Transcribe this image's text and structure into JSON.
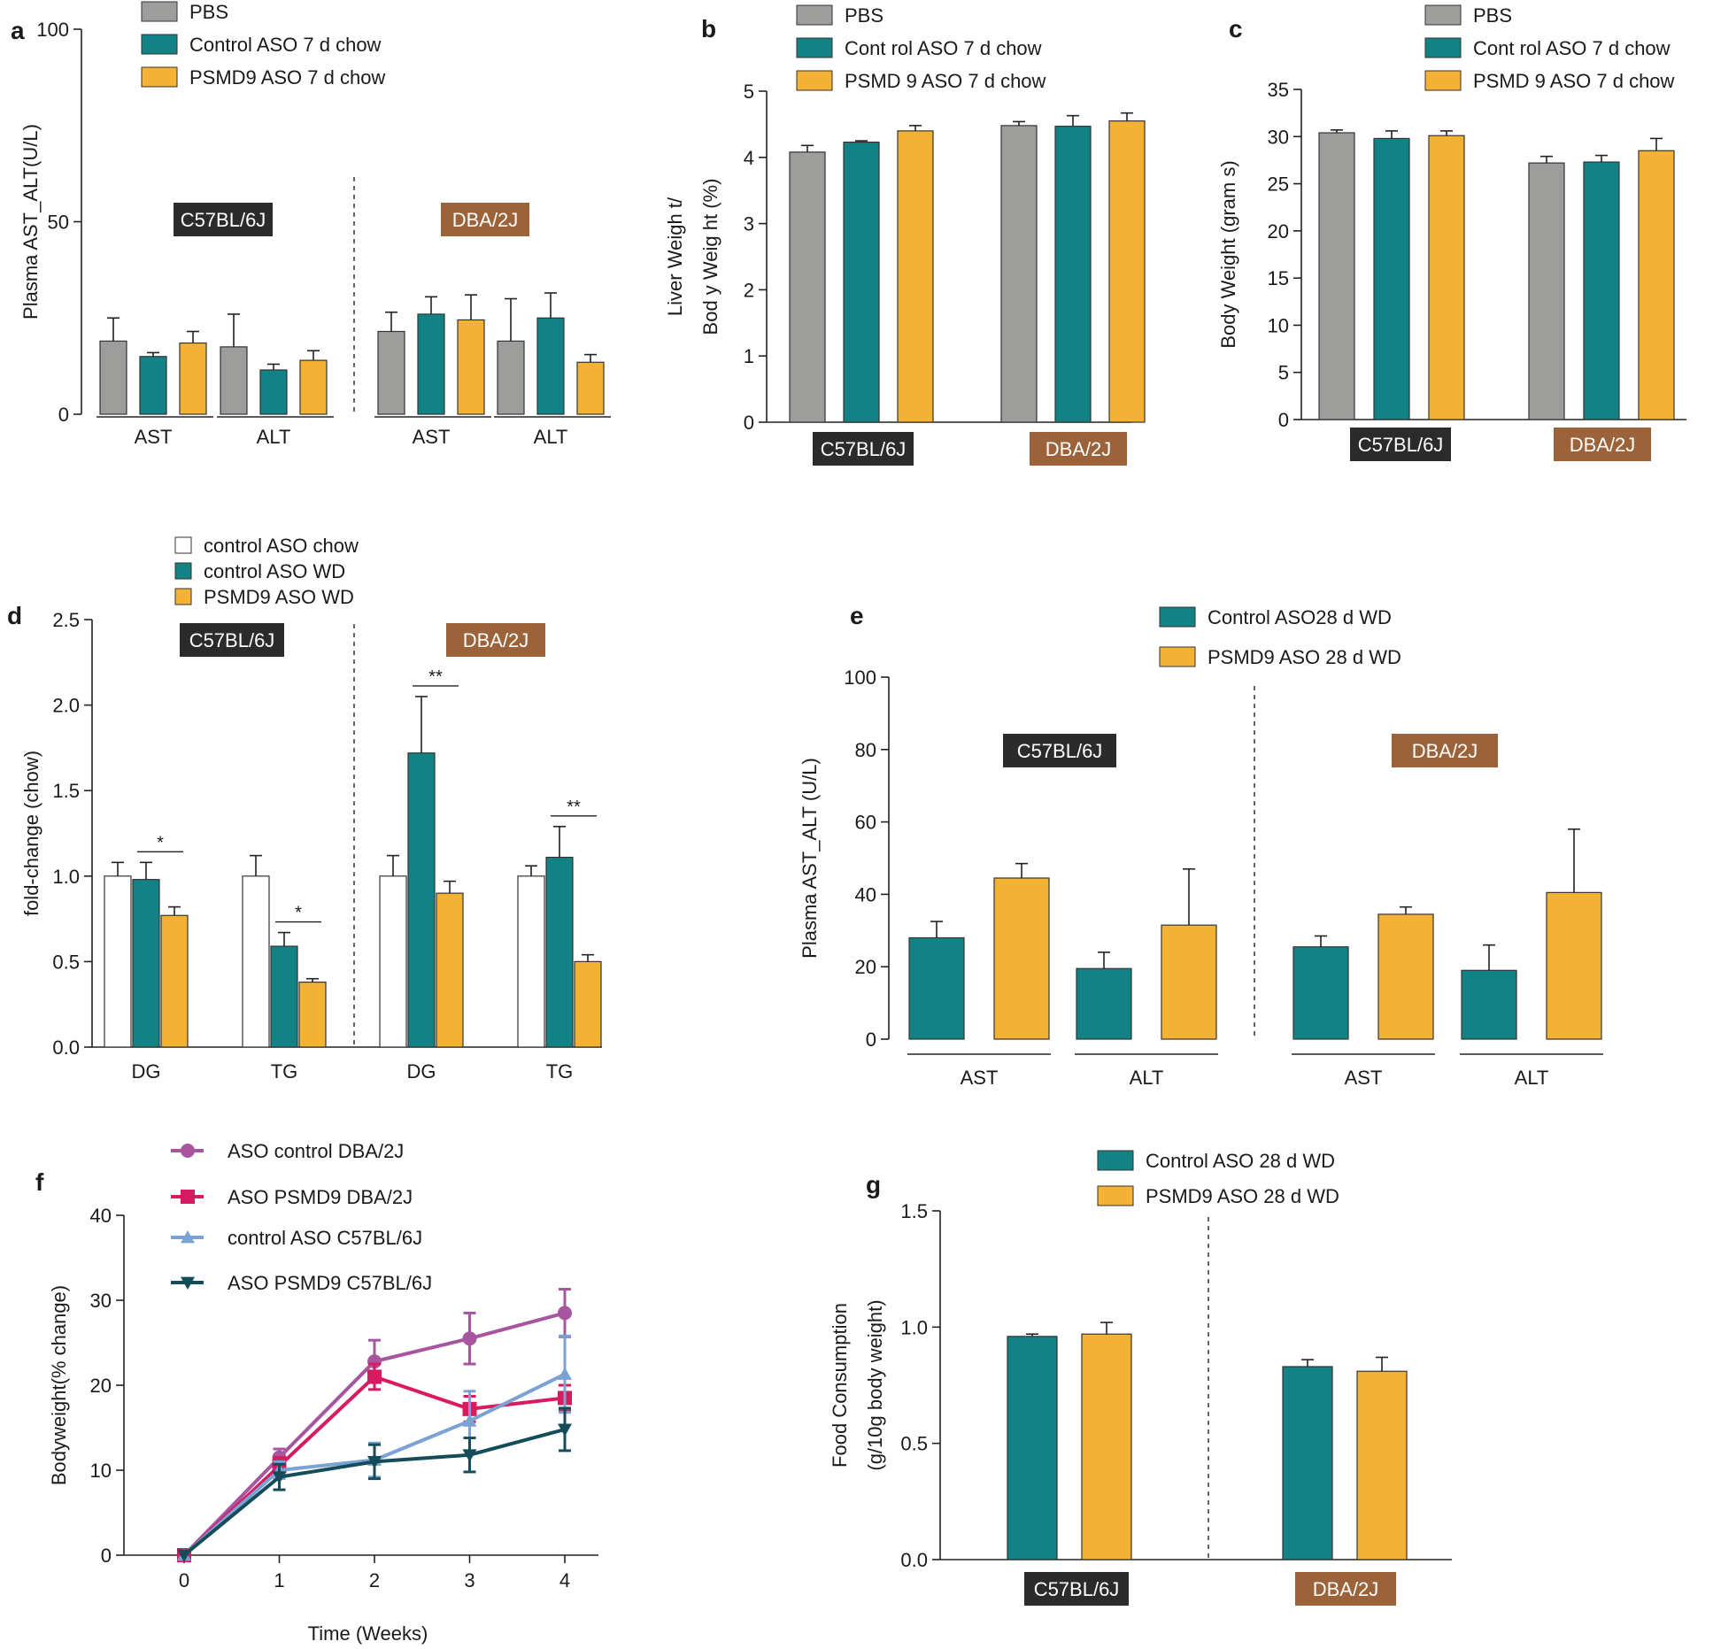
{
  "colors": {
    "pbs": "#9d9d9c",
    "teal": "#138285",
    "orange": "#f3b233",
    "white": "#ffffff",
    "strain_c57": "#2b2b2b",
    "strain_dba": "#9c6239",
    "line_dba_control": "#a8559f",
    "line_dba_psmd9": "#d81b60",
    "line_c57_control": "#7ba2d4",
    "line_c57_psmd9": "#154c5a"
  },
  "chart_data": [
    {
      "panel": "a",
      "type": "bar",
      "ylabel": "Plasma AST_ALT(U/L)",
      "ylim": [
        0,
        100
      ],
      "yticks": [
        0,
        50,
        100
      ],
      "legend": [
        "PBS",
        "Control ASO 7 d chow",
        "PSMD9 ASO 7 d chow"
      ],
      "groups": [
        {
          "label": "AST",
          "strain": "C57BL/6J",
          "values": [
            19,
            15,
            18.5
          ],
          "errors": [
            6,
            1,
            3
          ]
        },
        {
          "label": "ALT",
          "strain": "C57BL/6J",
          "values": [
            17.5,
            11.5,
            14
          ],
          "errors": [
            8.5,
            1.5,
            2.5
          ]
        },
        {
          "label": "AST",
          "strain": "DBA/2J",
          "values": [
            21.5,
            26,
            24.5
          ],
          "errors": [
            5,
            4.5,
            6.5
          ]
        },
        {
          "label": "ALT",
          "strain": "DBA/2J",
          "values": [
            19,
            25,
            13.5
          ],
          "errors": [
            11,
            6.5,
            2
          ]
        }
      ],
      "strains": [
        "C57BL/6J",
        "DBA/2J"
      ]
    },
    {
      "panel": "b",
      "type": "bar",
      "ylabel": "Liver Weigh t/ Bod y Weig ht (%)",
      "ylim": [
        0,
        5
      ],
      "yticks": [
        0,
        1,
        2,
        3,
        4,
        5
      ],
      "legend": [
        "PBS",
        "Cont rol ASO 7 d chow",
        "PSMD 9 ASO 7 d chow"
      ],
      "groups": [
        {
          "label": "C57BL/6J",
          "values": [
            4.08,
            4.23,
            4.4
          ],
          "errors": [
            0.1,
            0.02,
            0.08
          ]
        },
        {
          "label": "DBA/2J",
          "values": [
            4.48,
            4.47,
            4.55
          ],
          "errors": [
            0.06,
            0.16,
            0.12
          ]
        }
      ]
    },
    {
      "panel": "c",
      "type": "bar",
      "ylabel": "Body Weight (gram s)",
      "ylim": [
        0,
        35
      ],
      "yticks": [
        0,
        5,
        10,
        15,
        20,
        25,
        30,
        35
      ],
      "legend": [
        "PBS",
        "Cont rol ASO 7 d chow",
        "PSMD 9 ASO 7 d chow"
      ],
      "groups": [
        {
          "label": "C57BL/6J",
          "values": [
            30.4,
            29.8,
            30.1
          ],
          "errors": [
            0.3,
            0.8,
            0.5
          ]
        },
        {
          "label": "DBA/2J",
          "values": [
            27.2,
            27.3,
            28.5
          ],
          "errors": [
            0.7,
            0.7,
            1.3
          ]
        }
      ]
    },
    {
      "panel": "d",
      "type": "bar",
      "ylabel": "fold-change (chow)",
      "ylim": [
        0,
        2.5
      ],
      "yticks": [
        "0.0",
        "0.5",
        "1.0",
        "1.5",
        "2.0",
        "2.5"
      ],
      "legend": [
        "control ASO chow",
        "control ASO WD",
        "PSMD9 ASO WD"
      ],
      "groups": [
        {
          "label": "DG",
          "strain": "C57BL/6J",
          "values": [
            1.0,
            0.98,
            0.77
          ],
          "errors": [
            0.08,
            0.1,
            0.05
          ],
          "sig": "*"
        },
        {
          "label": "TG",
          "strain": "C57BL/6J",
          "values": [
            1.0,
            0.59,
            0.38
          ],
          "errors": [
            0.12,
            0.08,
            0.02
          ],
          "sig": "*"
        },
        {
          "label": "DG",
          "strain": "DBA/2J",
          "values": [
            1.0,
            1.72,
            0.9
          ],
          "errors": [
            0.12,
            0.33,
            0.07
          ],
          "sig": "**"
        },
        {
          "label": "TG",
          "strain": "DBA/2J",
          "values": [
            1.0,
            1.11,
            0.5
          ],
          "errors": [
            0.06,
            0.18,
            0.04
          ],
          "sig": "**"
        }
      ],
      "strains": [
        "C57BL/6J",
        "DBA/2J"
      ]
    },
    {
      "panel": "e",
      "type": "bar",
      "ylabel": "Plasma AST_ALT (U/L)",
      "ylim": [
        0,
        100
      ],
      "yticks": [
        0,
        20,
        40,
        60,
        80,
        100
      ],
      "legend": [
        "Control ASO28 d WD",
        "PSMD9 ASO 28 d WD"
      ],
      "groups": [
        {
          "label": "AST",
          "strain": "C57BL/6J",
          "values": [
            28,
            44.5
          ],
          "errors": [
            4.5,
            4
          ]
        },
        {
          "label": "ALT",
          "strain": "C57BL/6J",
          "values": [
            19.5,
            31.5
          ],
          "errors": [
            4.5,
            15.5
          ]
        },
        {
          "label": "AST",
          "strain": "DBA/2J",
          "values": [
            25.5,
            34.5
          ],
          "errors": [
            3,
            2
          ]
        },
        {
          "label": "ALT",
          "strain": "DBA/2J",
          "values": [
            19,
            40.5
          ],
          "errors": [
            7,
            17.5
          ]
        }
      ],
      "strains": [
        "C57BL/6J",
        "DBA/2J"
      ]
    },
    {
      "panel": "f",
      "type": "line",
      "xlabel": "Time (Weeks)",
      "ylabel": "Bodyweight(% change)",
      "ylim": [
        0,
        40
      ],
      "yticks": [
        0,
        10,
        20,
        30,
        40
      ],
      "x": [
        0,
        1,
        2,
        3,
        4
      ],
      "series": [
        {
          "name": "ASO control DBA/2J",
          "marker": "circle",
          "values": [
            0,
            11.5,
            22.8,
            25.5,
            28.5
          ],
          "errors": [
            0,
            1,
            2.5,
            3,
            2.8
          ]
        },
        {
          "name": "ASO PSMD9 DBA/2J",
          "marker": "square",
          "values": [
            0,
            10.5,
            21,
            17.2,
            18.5
          ],
          "errors": [
            0,
            1,
            1.5,
            1.5,
            1.5
          ]
        },
        {
          "name": "control ASO C57BL/6J",
          "marker": "triangle-up",
          "values": [
            0,
            10,
            11.2,
            15.8,
            21.3
          ],
          "errors": [
            0,
            1,
            2,
            3.5,
            4.5
          ]
        },
        {
          "name": "ASO PSMD9 C57BL/6J",
          "marker": "triangle-down",
          "values": [
            0,
            9.2,
            11,
            11.8,
            14.8
          ],
          "errors": [
            0,
            1.5,
            2,
            2,
            2.5
          ]
        }
      ]
    },
    {
      "panel": "g",
      "type": "bar",
      "ylabel": "Food Consumption (g/10g body weight)",
      "ylim": [
        0,
        1.5
      ],
      "yticks": [
        "0.0",
        "0.5",
        "1.0",
        "1.5"
      ],
      "legend": [
        "Control ASO 28 d WD",
        "PSMD9 ASO 28 d WD"
      ],
      "groups": [
        {
          "label": "C57BL/6J",
          "values": [
            0.96,
            0.97
          ],
          "errors": [
            0.01,
            0.05
          ]
        },
        {
          "label": "DBA/2J",
          "values": [
            0.83,
            0.81
          ],
          "errors": [
            0.03,
            0.06
          ]
        }
      ]
    }
  ]
}
